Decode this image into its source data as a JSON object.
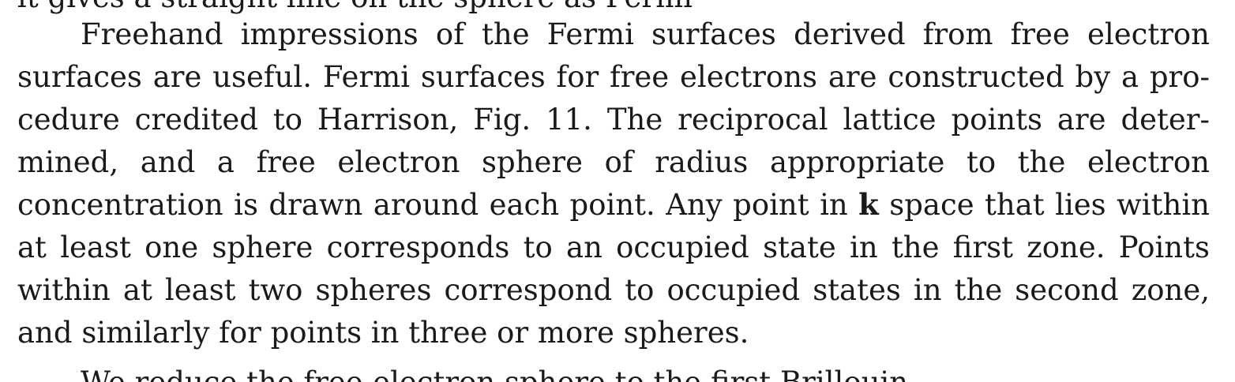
{
  "lines": {
    "top_fragment": "lt gives a straight line on the sphere as Fermi",
    "l1": "Freehand impressions of the Fermi surfaces derived from free electron",
    "l2": "surfaces are useful. Fermi surfaces for free electrons are constructed by a pro-",
    "l3": "cedure credited to Harrison, Fig. 11. The reciprocal lattice points are deter-",
    "l4": "mined, and a free electron sphere of radius appropriate to the electron",
    "l5a": "concentration is drawn around each point. Any point in ",
    "l5k": "k",
    "l5b": " space that lies within",
    "l6": "at least one sphere corresponds to an occupied state in the first zone. Points",
    "l7": "within at least two spheres correspond to occupied states in the second zone,",
    "l8": "and similarly for points in three or more spheres.",
    "bottom_fragment": "We reduce the free-electron sphere to the first Brillouin"
  }
}
